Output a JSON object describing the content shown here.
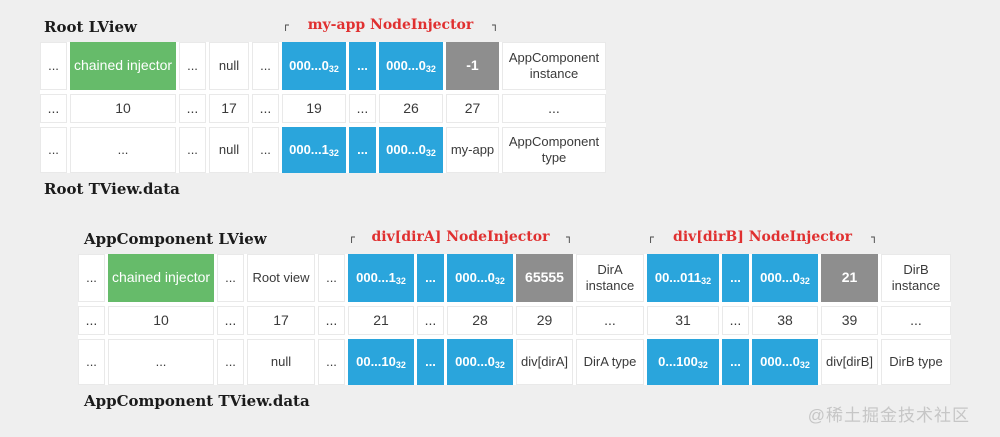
{
  "labels": {
    "root_lview": "Root LView",
    "root_tview": "Root TView.data",
    "app_lview": "AppComponent LView",
    "app_tview": "AppComponent TView.data",
    "myapp_injector": "my-app NodeInjector",
    "dira_injector": "div[dirA] NodeInjector",
    "dirb_injector": "div[dirB] NodeInjector",
    "bracket_left": "┌",
    "bracket_right": "┐"
  },
  "colors": {
    "background": "#efefef",
    "cell_blue": "#2aa5dc",
    "cell_green": "#66bb6a",
    "cell_gray": "#8e8e8e",
    "injector_red": "#e03030"
  },
  "watermark": "@稀土掘金技术社区",
  "tables": {
    "root": {
      "rows": [
        [
          {
            "t": "...",
            "bg": "white"
          },
          {
            "t": "chained injector",
            "bg": "green"
          },
          {
            "t": "...",
            "bg": "white"
          },
          {
            "t": "null",
            "bg": "white"
          },
          {
            "t": "...",
            "bg": "white"
          },
          {
            "t": "000...0",
            "sub": "32",
            "bg": "blue"
          },
          {
            "t": "...",
            "bg": "blue"
          },
          {
            "t": "000...0",
            "sub": "32",
            "bg": "blue"
          },
          {
            "t": "-1",
            "bg": "gray"
          },
          {
            "t": "AppComponent instance",
            "bg": "white"
          }
        ],
        [
          {
            "t": "...",
            "bg": "white"
          },
          {
            "t": "10",
            "bg": "white"
          },
          {
            "t": "...",
            "bg": "white"
          },
          {
            "t": "17",
            "bg": "white"
          },
          {
            "t": "...",
            "bg": "white"
          },
          {
            "t": "19",
            "bg": "white"
          },
          {
            "t": "...",
            "bg": "white"
          },
          {
            "t": "26",
            "bg": "white"
          },
          {
            "t": "27",
            "bg": "white"
          },
          {
            "t": "...",
            "bg": "white"
          }
        ],
        [
          {
            "t": "...",
            "bg": "white"
          },
          {
            "t": "...",
            "bg": "white"
          },
          {
            "t": "...",
            "bg": "white"
          },
          {
            "t": "null",
            "bg": "white"
          },
          {
            "t": "...",
            "bg": "white"
          },
          {
            "t": "000...1",
            "sub": "32",
            "bg": "blue"
          },
          {
            "t": "...",
            "bg": "blue"
          },
          {
            "t": "000...0",
            "sub": "32",
            "bg": "blue"
          },
          {
            "t": "my-app",
            "bg": "white"
          },
          {
            "t": "AppComponent type",
            "bg": "white"
          }
        ]
      ]
    },
    "app": {
      "rows": [
        [
          {
            "t": "...",
            "bg": "white"
          },
          {
            "t": "chained injector",
            "bg": "green"
          },
          {
            "t": "...",
            "bg": "white"
          },
          {
            "t": "Root view",
            "bg": "white"
          },
          {
            "t": "...",
            "bg": "white"
          },
          {
            "t": "000...1",
            "sub": "32",
            "bg": "blue"
          },
          {
            "t": "...",
            "bg": "blue"
          },
          {
            "t": "000...0",
            "sub": "32",
            "bg": "blue"
          },
          {
            "t": "65555",
            "bg": "gray"
          },
          {
            "t": "DirA instance",
            "bg": "white"
          },
          {
            "t": "00...011",
            "sub": "32",
            "bg": "blue"
          },
          {
            "t": "...",
            "bg": "blue"
          },
          {
            "t": "000...0",
            "sub": "32",
            "bg": "blue"
          },
          {
            "t": "21",
            "bg": "gray"
          },
          {
            "t": "DirB instance",
            "bg": "white"
          }
        ],
        [
          {
            "t": "...",
            "bg": "white"
          },
          {
            "t": "10",
            "bg": "white"
          },
          {
            "t": "...",
            "bg": "white"
          },
          {
            "t": "17",
            "bg": "white"
          },
          {
            "t": "...",
            "bg": "white"
          },
          {
            "t": "21",
            "bg": "white"
          },
          {
            "t": "...",
            "bg": "white"
          },
          {
            "t": "28",
            "bg": "white"
          },
          {
            "t": "29",
            "bg": "white"
          },
          {
            "t": "...",
            "bg": "white"
          },
          {
            "t": "31",
            "bg": "white"
          },
          {
            "t": "...",
            "bg": "white"
          },
          {
            "t": "38",
            "bg": "white"
          },
          {
            "t": "39",
            "bg": "white"
          },
          {
            "t": "...",
            "bg": "white"
          }
        ],
        [
          {
            "t": "...",
            "bg": "white"
          },
          {
            "t": "...",
            "bg": "white"
          },
          {
            "t": "...",
            "bg": "white"
          },
          {
            "t": "null",
            "bg": "white"
          },
          {
            "t": "...",
            "bg": "white"
          },
          {
            "t": "00...10",
            "sub": "32",
            "bg": "blue"
          },
          {
            "t": "...",
            "bg": "blue"
          },
          {
            "t": "000...0",
            "sub": "32",
            "bg": "blue"
          },
          {
            "t": "div[dirA]",
            "bg": "white"
          },
          {
            "t": "DirA type",
            "bg": "white"
          },
          {
            "t": "0...100",
            "sub": "32",
            "bg": "blue"
          },
          {
            "t": "...",
            "bg": "blue"
          },
          {
            "t": "000...0",
            "sub": "32",
            "bg": "blue"
          },
          {
            "t": "div[dirB]",
            "bg": "white"
          },
          {
            "t": "DirB type",
            "bg": "white"
          }
        ]
      ]
    }
  }
}
